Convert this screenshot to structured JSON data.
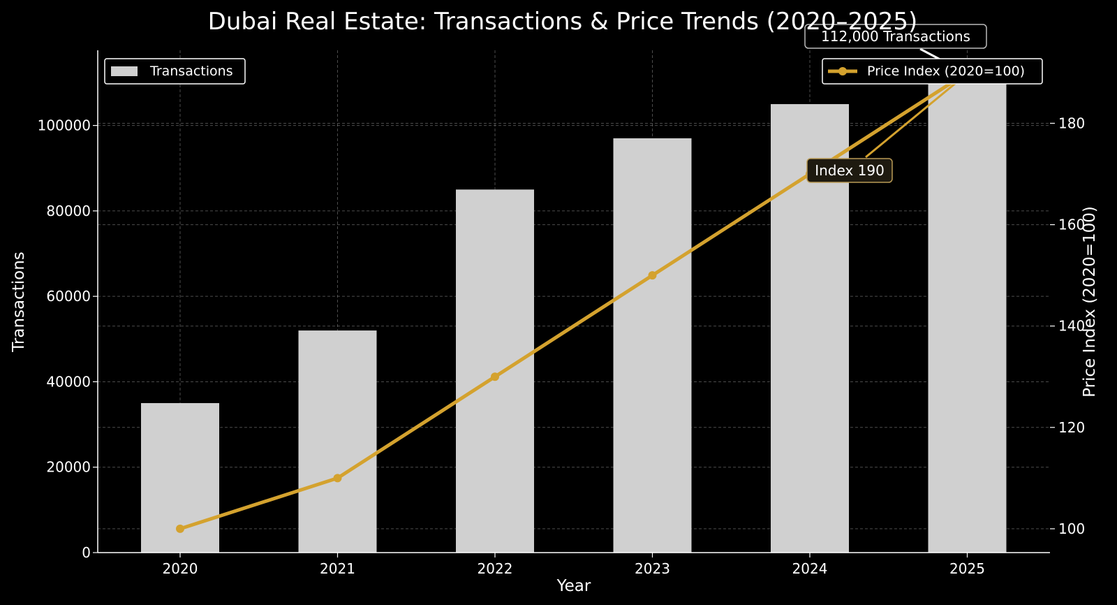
{
  "chart_data": {
    "type": "bar",
    "title": "Dubai Real Estate: Transactions & Price Trends (2020–2025)",
    "xlabel": "Year",
    "categories": [
      "2020",
      "2021",
      "2022",
      "2023",
      "2024",
      "2025"
    ],
    "series": [
      {
        "name": "Transactions",
        "type": "bar",
        "axis": "left",
        "values": [
          35000,
          52000,
          85000,
          97000,
          105000,
          112000
        ],
        "color": "#d0d0d0"
      },
      {
        "name": "Price Index (2020=100)",
        "type": "line",
        "axis": "right",
        "values": [
          100,
          110,
          130,
          150,
          170,
          190
        ],
        "color": "#d4a22e"
      }
    ],
    "y_left": {
      "label": "Transactions",
      "ylim": [
        0,
        117600
      ],
      "ticks": [
        0,
        20000,
        40000,
        60000,
        80000,
        100000
      ]
    },
    "y_right": {
      "label": "Price Index (2020=100)",
      "ylim": [
        95.3,
        194.4
      ],
      "ticks": [
        100,
        120,
        140,
        160,
        180
      ]
    },
    "grid": true,
    "legends": [
      {
        "series": "Transactions",
        "position": "top-left"
      },
      {
        "series": "Price Index (2020=100)",
        "position": "top-right"
      }
    ],
    "annotations": [
      {
        "text": "112,000 Transactions",
        "x": "2025",
        "y": 112000,
        "axis": "left"
      },
      {
        "text": "Index 190",
        "x": "2025",
        "y": 190,
        "axis": "right"
      }
    ],
    "colors": {
      "background": "#000000",
      "bar": "#d0d0d0",
      "line": "#d4a22e",
      "text": "#ffffff"
    }
  }
}
